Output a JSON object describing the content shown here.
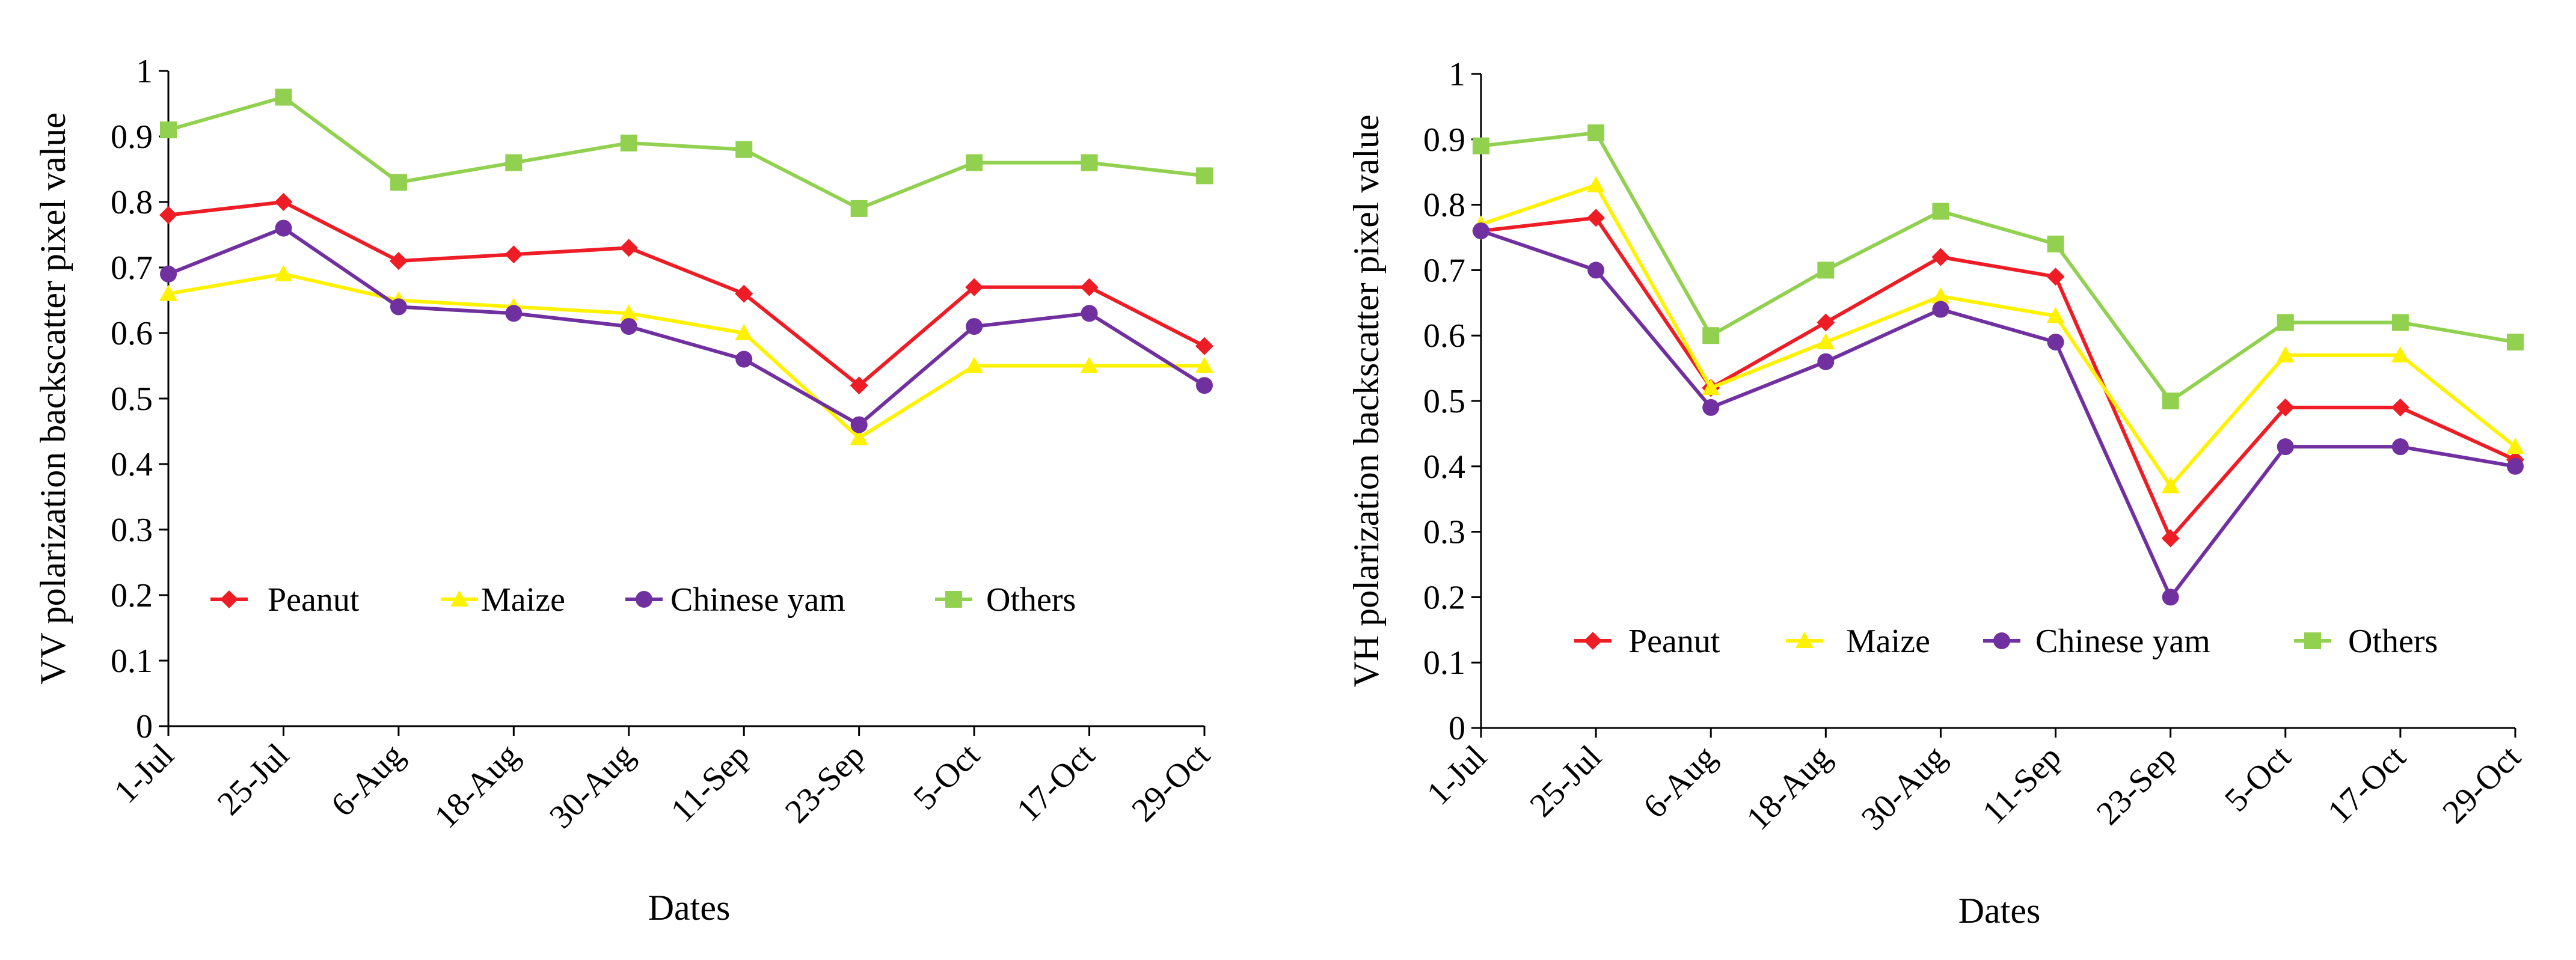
{
  "chart_data": [
    {
      "type": "line",
      "categories": [
        "1-Jul",
        "25-Jul",
        "6-Aug",
        "18-Aug",
        "30-Aug",
        "11-Sep",
        "23-Sep",
        "5-Oct",
        "17-Oct",
        "29-Oct"
      ],
      "xlabel": "Dates",
      "ylabel": "VV polarization backscatter pixel value",
      "ylim": [
        0,
        1
      ],
      "yticks": [
        "0",
        "0.1",
        "0.2",
        "0.3",
        "0.4",
        "0.5",
        "0.6",
        "0.7",
        "0.8",
        "0.9",
        "1"
      ],
      "grid": false,
      "legend_position": "lower-center",
      "series": [
        {
          "name": "Peanut",
          "color": "#ee1c25",
          "marker": "diamond",
          "values": [
            0.78,
            0.8,
            0.71,
            0.72,
            0.73,
            0.66,
            0.52,
            0.67,
            0.67,
            0.58
          ]
        },
        {
          "name": "Maize",
          "color": "#fff200",
          "marker": "triangle",
          "values": [
            0.66,
            0.69,
            0.65,
            0.64,
            0.63,
            0.6,
            0.44,
            0.55,
            0.55,
            0.55
          ]
        },
        {
          "name": "Chinese yam",
          "color": "#7030a0",
          "marker": "circle",
          "values": [
            0.69,
            0.76,
            0.64,
            0.63,
            0.61,
            0.56,
            0.46,
            0.61,
            0.63,
            0.52
          ]
        },
        {
          "name": "Others",
          "color": "#92d050",
          "marker": "square",
          "values": [
            0.91,
            0.96,
            0.83,
            0.86,
            0.89,
            0.88,
            0.79,
            0.86,
            0.86,
            0.84
          ]
        }
      ]
    },
    {
      "type": "line",
      "categories": [
        "1-Jul",
        "25-Jul",
        "6-Aug",
        "18-Aug",
        "30-Aug",
        "11-Sep",
        "23-Sep",
        "5-Oct",
        "17-Oct",
        "29-Oct"
      ],
      "xlabel": "Dates",
      "ylabel": "VH polarization backscatter pixel value",
      "ylim": [
        0,
        1
      ],
      "yticks": [
        "0",
        "0.1",
        "0.2",
        "0.3",
        "0.4",
        "0.5",
        "0.6",
        "0.7",
        "0.8",
        "0.9",
        "1"
      ],
      "grid": false,
      "legend_position": "lower-center",
      "series": [
        {
          "name": "Peanut",
          "color": "#ee1c25",
          "marker": "diamond",
          "values": [
            0.76,
            0.78,
            0.52,
            0.62,
            0.72,
            0.69,
            0.29,
            0.49,
            0.49,
            0.41
          ]
        },
        {
          "name": "Maize",
          "color": "#fff200",
          "marker": "triangle",
          "values": [
            0.77,
            0.83,
            0.52,
            0.59,
            0.66,
            0.63,
            0.37,
            0.57,
            0.57,
            0.43
          ]
        },
        {
          "name": "Chinese yam",
          "color": "#7030a0",
          "marker": "circle",
          "values": [
            0.76,
            0.7,
            0.49,
            0.56,
            0.64,
            0.59,
            0.2,
            0.43,
            0.43,
            0.4
          ]
        },
        {
          "name": "Others",
          "color": "#92d050",
          "marker": "square",
          "values": [
            0.89,
            0.91,
            0.6,
            0.7,
            0.79,
            0.74,
            0.5,
            0.62,
            0.62,
            0.59
          ]
        }
      ]
    }
  ]
}
